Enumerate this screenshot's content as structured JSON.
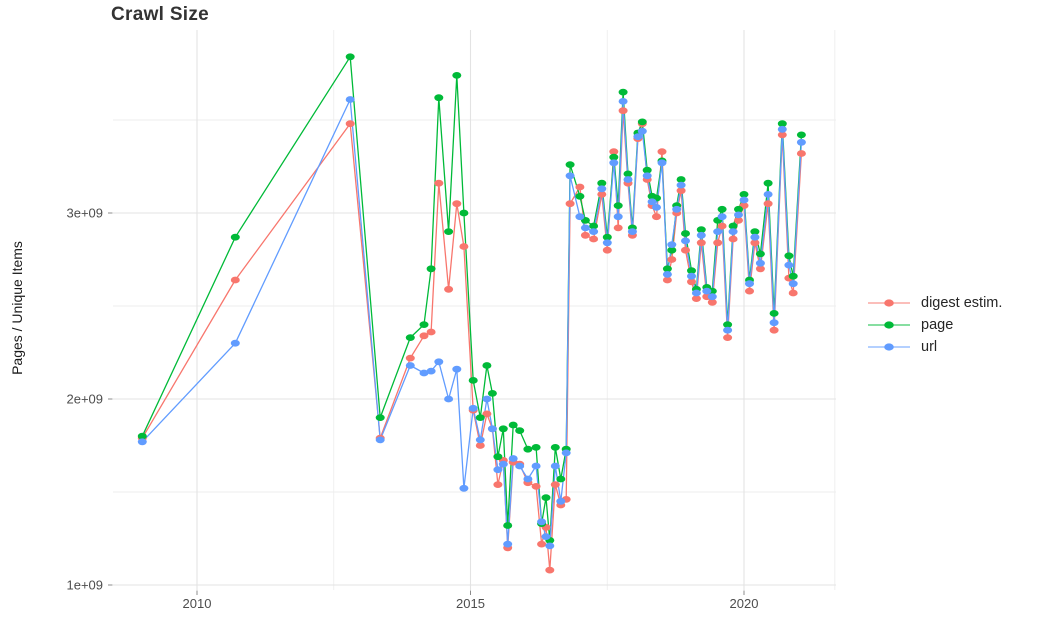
{
  "page_title": "Crawl Size",
  "chart_data": {
    "type": "line",
    "title": "Crawl Size",
    "xlabel": "",
    "ylabel": "Pages / Unique Items",
    "legend_position": "right-center",
    "grid": true,
    "background_color": "#ffffff",
    "values_unit": "items (value x 1e9)",
    "axes": {
      "x": {
        "domain_years": [
          2008.46,
          2021.66
        ],
        "tick_labels": [
          "2010",
          "2015",
          "2020"
        ],
        "tick_years": [
          2010,
          2015,
          2020
        ],
        "minor_grid_years": [
          2012.5,
          2017.5,
          2021.66
        ]
      },
      "y": {
        "domain_billions": [
          0.97,
          3.98
        ],
        "tick_labels": [
          "1e+09",
          "2e+09",
          "3e+09"
        ],
        "tick_values_billions": [
          1,
          2,
          3
        ],
        "minor_grid_values_billions": [
          1.5,
          2.5,
          3.5
        ]
      }
    },
    "x_years": [
      2009.0,
      2010.7,
      2012.8,
      2013.35,
      2013.9,
      2014.15,
      2014.28,
      2014.42,
      2014.6,
      2014.75,
      2014.88,
      2015.05,
      2015.18,
      2015.3,
      2015.4,
      2015.5,
      2015.6,
      2015.68,
      2015.78,
      2015.9,
      2016.05,
      2016.2,
      2016.3,
      2016.38,
      2016.45,
      2016.55,
      2016.65,
      2016.75,
      2016.82,
      2017.0,
      2017.1,
      2017.25,
      2017.4,
      2017.5,
      2017.62,
      2017.7,
      2017.79,
      2017.88,
      2017.96,
      2018.06,
      2018.14,
      2018.23,
      2018.32,
      2018.4,
      2018.5,
      2018.6,
      2018.68,
      2018.77,
      2018.85,
      2018.93,
      2019.04,
      2019.13,
      2019.22,
      2019.32,
      2019.42,
      2019.52,
      2019.6,
      2019.7,
      2019.8,
      2019.9,
      2020.0,
      2020.1,
      2020.2,
      2020.3,
      2020.44,
      2020.55,
      2020.7,
      2020.82,
      2020.9,
      2021.05
    ],
    "series": [
      {
        "name": "digest estim.",
        "color": "#F8766D",
        "values_billions": [
          1.79,
          2.64,
          3.48,
          1.79,
          2.22,
          2.34,
          2.36,
          3.16,
          2.59,
          3.05,
          2.82,
          1.94,
          1.75,
          1.92,
          1.84,
          1.54,
          1.67,
          1.2,
          1.66,
          1.65,
          1.55,
          1.53,
          1.22,
          1.31,
          1.08,
          1.54,
          1.43,
          1.46,
          3.05,
          3.14,
          2.88,
          2.86,
          3.1,
          2.8,
          3.33,
          2.92,
          3.55,
          3.16,
          2.88,
          3.4,
          3.48,
          3.18,
          3.04,
          2.98,
          3.33,
          2.64,
          2.75,
          3.0,
          3.12,
          2.8,
          2.63,
          2.54,
          2.84,
          2.55,
          2.52,
          2.84,
          2.93,
          2.33,
          2.86,
          2.96,
          3.04,
          2.58,
          2.84,
          2.7,
          3.05,
          2.37,
          3.42,
          2.65,
          2.57,
          3.32
        ]
      },
      {
        "name": "page",
        "color": "#00BA38",
        "values_billions": [
          1.8,
          2.87,
          3.84,
          1.9,
          2.33,
          2.4,
          2.7,
          3.62,
          2.9,
          3.74,
          3.0,
          2.1,
          1.9,
          2.18,
          2.03,
          1.69,
          1.84,
          1.32,
          1.86,
          1.83,
          1.73,
          1.74,
          1.33,
          1.47,
          1.24,
          1.74,
          1.57,
          1.73,
          3.26,
          3.09,
          2.96,
          2.93,
          3.16,
          2.87,
          3.3,
          3.04,
          3.65,
          3.21,
          2.92,
          3.43,
          3.49,
          3.23,
          3.09,
          3.08,
          3.28,
          2.7,
          2.8,
          3.04,
          3.18,
          2.89,
          2.69,
          2.59,
          2.91,
          2.6,
          2.58,
          2.96,
          3.02,
          2.4,
          2.93,
          3.02,
          3.1,
          2.64,
          2.9,
          2.78,
          3.16,
          2.46,
          3.48,
          2.77,
          2.66,
          3.42
        ]
      },
      {
        "name": "url",
        "color": "#619CFF",
        "values_billions": [
          1.77,
          2.3,
          3.61,
          1.78,
          2.18,
          2.14,
          2.15,
          2.2,
          2.0,
          2.16,
          1.52,
          1.95,
          1.78,
          2.0,
          1.84,
          1.62,
          1.65,
          1.22,
          1.68,
          1.64,
          1.57,
          1.64,
          1.34,
          1.26,
          1.21,
          1.64,
          1.45,
          1.71,
          3.2,
          2.98,
          2.92,
          2.9,
          3.13,
          2.84,
          3.27,
          2.98,
          3.6,
          3.18,
          2.9,
          3.41,
          3.44,
          3.2,
          3.06,
          3.03,
          3.27,
          2.67,
          2.83,
          3.02,
          3.15,
          2.85,
          2.66,
          2.57,
          2.88,
          2.58,
          2.55,
          2.9,
          2.98,
          2.37,
          2.9,
          2.99,
          3.07,
          2.62,
          2.87,
          2.73,
          3.1,
          2.41,
          3.45,
          2.72,
          2.62,
          3.38
        ]
      }
    ]
  }
}
